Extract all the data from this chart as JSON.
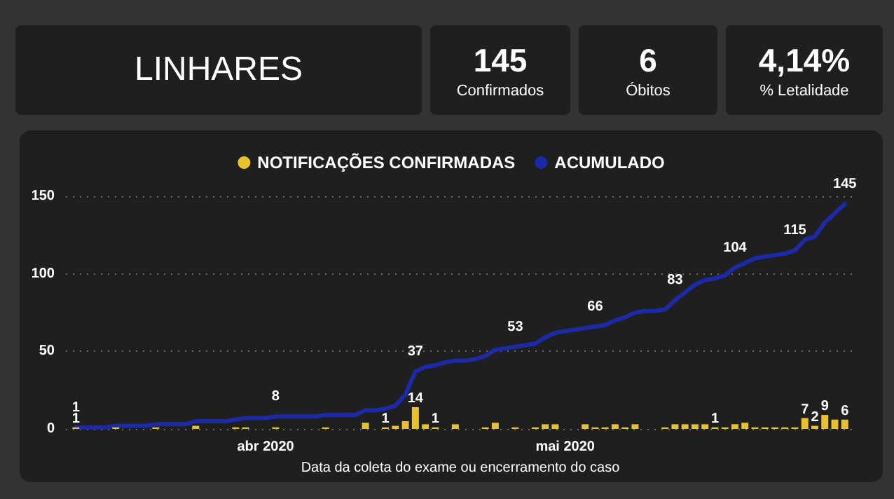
{
  "chart_data": [
    {
      "type": "other",
      "title": "LINHARES"
    },
    {
      "type": "other",
      "title": "145",
      "subtitle": "Confirmados"
    },
    {
      "type": "other",
      "title": "6",
      "subtitle": "Óbitos"
    },
    {
      "type": "other",
      "title": "4,14%",
      "subtitle": "% Letalidade"
    },
    {
      "type": "bar",
      "title": null,
      "xlabel": "Data da coleta do exame ou encerramento do caso",
      "x": [
        "2020-03-13",
        "2020-03-14",
        "2020-03-15",
        "2020-03-16",
        "2020-03-17",
        "2020-03-18",
        "2020-03-19",
        "2020-03-20",
        "2020-03-21",
        "2020-03-22",
        "2020-03-23",
        "2020-03-24",
        "2020-03-25",
        "2020-03-26",
        "2020-03-27",
        "2020-03-28",
        "2020-03-29",
        "2020-03-30",
        "2020-03-31",
        "2020-04-01",
        "2020-04-02",
        "2020-04-03",
        "2020-04-04",
        "2020-04-05",
        "2020-04-06",
        "2020-04-07",
        "2020-04-08",
        "2020-04-09",
        "2020-04-10",
        "2020-04-11",
        "2020-04-12",
        "2020-04-13",
        "2020-04-14",
        "2020-04-15",
        "2020-04-16",
        "2020-04-17",
        "2020-04-18",
        "2020-04-19",
        "2020-04-20",
        "2020-04-21",
        "2020-04-22",
        "2020-04-23",
        "2020-04-24",
        "2020-04-25",
        "2020-04-26",
        "2020-04-27",
        "2020-04-28",
        "2020-04-29",
        "2020-04-30",
        "2020-05-01",
        "2020-05-02",
        "2020-05-03",
        "2020-05-04",
        "2020-05-05",
        "2020-05-06",
        "2020-05-07",
        "2020-05-08",
        "2020-05-09",
        "2020-05-10",
        "2020-05-11",
        "2020-05-12",
        "2020-05-13",
        "2020-05-14",
        "2020-05-15",
        "2020-05-16",
        "2020-05-17",
        "2020-05-18",
        "2020-05-19",
        "2020-05-20",
        "2020-05-21",
        "2020-05-22",
        "2020-05-23",
        "2020-05-24",
        "2020-05-25",
        "2020-05-26",
        "2020-05-27",
        "2020-05-28",
        "2020-05-29"
      ],
      "series": [
        {
          "name": "NOTIFICAÇÕES CONFIRMADAS",
          "type": "bar",
          "color": "#e8c22c",
          "values": [
            1,
            null,
            null,
            null,
            1,
            null,
            null,
            null,
            1,
            null,
            null,
            null,
            2,
            null,
            null,
            null,
            1,
            1,
            null,
            null,
            1,
            null,
            null,
            null,
            null,
            1,
            null,
            null,
            null,
            4,
            null,
            1,
            2,
            5,
            14,
            3,
            1,
            null,
            3,
            null,
            null,
            1,
            4,
            null,
            1,
            null,
            1,
            3,
            3,
            null,
            null,
            3,
            1,
            1,
            3,
            1,
            3,
            null,
            null,
            1,
            3,
            3,
            3,
            3,
            1,
            1,
            3,
            4,
            1,
            1,
            1,
            1,
            1,
            7,
            2,
            9,
            6,
            6
          ],
          "value_labels": [
            "1",
            null,
            null,
            null,
            null,
            null,
            null,
            null,
            null,
            null,
            null,
            null,
            null,
            null,
            null,
            null,
            null,
            null,
            null,
            null,
            null,
            null,
            null,
            null,
            null,
            null,
            null,
            null,
            null,
            null,
            null,
            "1",
            null,
            null,
            "14",
            null,
            "1",
            null,
            null,
            null,
            null,
            null,
            null,
            null,
            null,
            null,
            null,
            null,
            null,
            null,
            null,
            null,
            null,
            null,
            null,
            null,
            null,
            null,
            null,
            null,
            null,
            null,
            null,
            null,
            "1",
            null,
            null,
            null,
            null,
            null,
            null,
            null,
            null,
            "7",
            "2",
            "9",
            null,
            "6"
          ]
        },
        {
          "name": "ACUMULADO",
          "type": "line",
          "color": "#1c2aa8",
          "values": [
            1,
            1,
            1,
            1,
            2,
            2,
            2,
            2,
            3,
            3,
            3,
            3,
            5,
            5,
            5,
            5,
            6,
            7,
            7,
            7,
            8,
            8,
            8,
            8,
            8,
            9,
            9,
            9,
            9,
            12,
            12,
            13,
            15,
            22,
            37,
            40,
            41,
            43,
            44,
            44,
            45,
            47,
            51,
            52,
            53,
            54,
            55,
            59,
            62,
            63,
            64,
            65,
            66,
            67,
            70,
            72,
            75,
            76,
            76,
            77,
            83,
            88,
            93,
            96,
            97,
            99,
            104,
            107,
            110,
            111,
            112,
            113,
            115,
            122,
            124,
            133,
            139,
            145
          ],
          "value_labels": [
            "1",
            null,
            null,
            null,
            null,
            null,
            null,
            null,
            null,
            null,
            null,
            null,
            null,
            null,
            null,
            null,
            null,
            null,
            null,
            null,
            "8",
            null,
            null,
            null,
            null,
            null,
            null,
            null,
            null,
            null,
            null,
            null,
            null,
            null,
            "37",
            null,
            null,
            null,
            null,
            null,
            null,
            null,
            null,
            null,
            "53",
            null,
            null,
            null,
            null,
            null,
            null,
            null,
            "66",
            null,
            null,
            null,
            null,
            null,
            null,
            null,
            "83",
            null,
            null,
            null,
            null,
            null,
            "104",
            null,
            null,
            null,
            null,
            null,
            "115",
            null,
            null,
            null,
            null,
            "145"
          ]
        }
      ],
      "xlim": [
        "2020-03-12",
        "2020-05-30"
      ],
      "xticks": [
        {
          "value": "2020-04-01",
          "label": "abr 2020"
        },
        {
          "value": "2020-05-01",
          "label": "mai 2020"
        }
      ],
      "ylim": [
        0,
        150
      ],
      "yticks": [
        0,
        50,
        100,
        150
      ],
      "grid": "y",
      "legend": "top",
      "marker": "none",
      "line_style": "solid"
    }
  ]
}
